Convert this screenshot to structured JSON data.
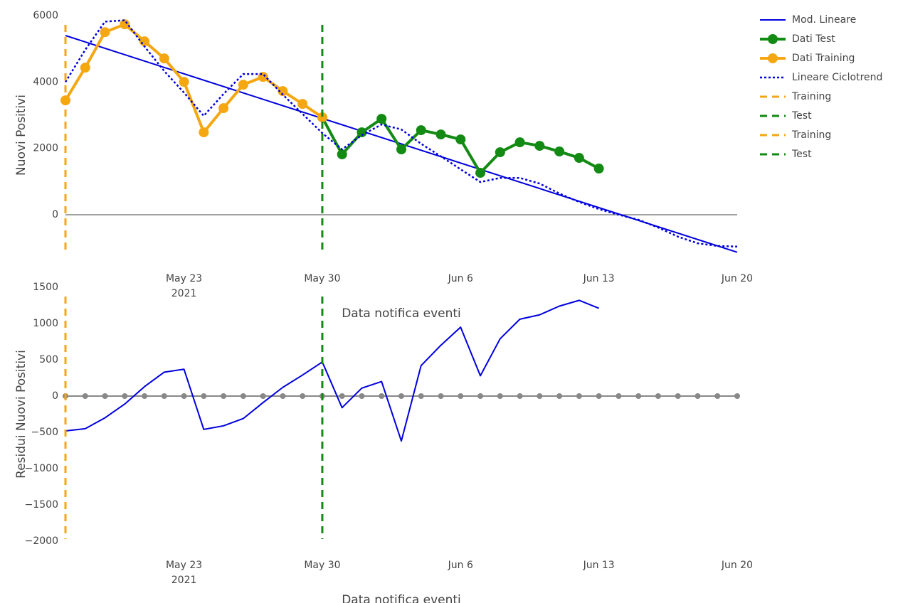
{
  "chart_data": [
    {
      "type": "line",
      "y_title": "Nuovi Positivi",
      "x_title": "Data notifica eventi",
      "xlim": [
        "2021-05-17",
        "2021-06-20"
      ],
      "xticks": [
        {
          "value": "2021-05-23",
          "label": "May 23"
        },
        {
          "value": "2021-05-30",
          "label": "May 30"
        },
        {
          "value": "2021-06-06",
          "label": "Jun 6"
        },
        {
          "value": "2021-06-13",
          "label": "Jun 13"
        },
        {
          "value": "2021-06-20",
          "label": "Jun 20"
        }
      ],
      "x_year_label": "2021",
      "ylim": [
        -1200,
        6000
      ],
      "yticks": [
        0,
        2000,
        4000,
        6000
      ],
      "zeroline": true,
      "series": [
        {
          "name": "Mod. Lineare",
          "color": "#0000dd",
          "dash": "solid",
          "marker": false,
          "width": 2,
          "x": [
            "2021-05-17",
            "2021-06-20"
          ],
          "values": [
            5400,
            -1130
          ]
        },
        {
          "name": "Dati Test",
          "color": "#138a13",
          "dash": "solid",
          "marker": true,
          "width": 4,
          "x": [
            "2021-05-30",
            "2021-05-31",
            "2021-06-01",
            "2021-06-02",
            "2021-06-03",
            "2021-06-04",
            "2021-06-05",
            "2021-06-06",
            "2021-06-07",
            "2021-06-08",
            "2021-06-09",
            "2021-06-10",
            "2021-06-11",
            "2021-06-12",
            "2021-06-13"
          ],
          "values": [
            2934,
            1820,
            2484,
            2891,
            1970,
            2548,
            2420,
            2270,
            1263,
            1884,
            2184,
            2077,
            1906,
            1713,
            1392
          ]
        },
        {
          "name": "Dati Training",
          "color": "#f5a712",
          "dash": "solid",
          "marker": true,
          "width": 4,
          "x": [
            "2021-05-17",
            "2021-05-18",
            "2021-05-19",
            "2021-05-20",
            "2021-05-21",
            "2021-05-22",
            "2021-05-23",
            "2021-05-24",
            "2021-05-25",
            "2021-05-26",
            "2021-05-27",
            "2021-05-28",
            "2021-05-29",
            "2021-05-30"
          ],
          "values": [
            3447,
            4433,
            5503,
            5739,
            5225,
            4711,
            4004,
            2484,
            3212,
            3919,
            4154,
            3726,
            3340,
            2934
          ]
        },
        {
          "name": "Lineare Ciclotrend",
          "color": "#0000dd",
          "dash": "dot",
          "marker": false,
          "width": 2.5,
          "x": [
            "2021-05-17",
            "2021-05-18",
            "2021-05-19",
            "2021-05-20",
            "2021-05-21",
            "2021-05-22",
            "2021-05-23",
            "2021-05-24",
            "2021-05-25",
            "2021-05-26",
            "2021-05-27",
            "2021-05-28",
            "2021-05-29",
            "2021-05-30",
            "2021-05-31",
            "2021-06-01",
            "2021-06-02",
            "2021-06-03",
            "2021-06-04",
            "2021-06-05",
            "2021-06-06",
            "2021-06-07",
            "2021-06-08",
            "2021-06-09",
            "2021-06-10",
            "2021-06-11",
            "2021-06-12",
            "2021-06-13",
            "2021-06-14",
            "2021-06-15",
            "2021-06-16",
            "2021-06-17",
            "2021-06-18",
            "2021-06-19",
            "2021-06-20"
          ],
          "values": [
            4000,
            4970,
            5820,
            5860,
            5070,
            4330,
            3680,
            2980,
            3640,
            4240,
            4240,
            3620,
            3040,
            2460,
            1970,
            2400,
            2720,
            2570,
            2140,
            1760,
            1370,
            985,
            1110,
            1110,
            940,
            640,
            385,
            170,
            0,
            -150,
            -385,
            -660,
            -860,
            -940,
            -960
          ]
        },
        {
          "name": "Training",
          "color": "#f5a712",
          "dash": "dash",
          "kind": "vline",
          "width": 3,
          "x": [
            "2021-05-17"
          ]
        },
        {
          "name": "Test",
          "color": "#138a13",
          "dash": "dash",
          "kind": "vline",
          "width": 3,
          "x": [
            "2021-05-30"
          ]
        }
      ]
    },
    {
      "type": "line",
      "y_title": "Residui Nuovi Positivi",
      "x_title": "Data notifica eventi",
      "xlim": [
        "2021-05-17",
        "2021-06-20"
      ],
      "xticks": [
        {
          "value": "2021-05-23",
          "label": "May 23"
        },
        {
          "value": "2021-05-30",
          "label": "May 30"
        },
        {
          "value": "2021-06-06",
          "label": "Jun 6"
        },
        {
          "value": "2021-06-13",
          "label": "Jun 13"
        },
        {
          "value": "2021-06-20",
          "label": "Jun 20"
        }
      ],
      "x_year_label": "2021",
      "ylim": [
        -2000,
        1500
      ],
      "yticks": [
        {
          "value": -2000,
          "label": "−2000"
        },
        {
          "value": -1500,
          "label": "−1500"
        },
        {
          "value": -1000,
          "label": "−1000"
        },
        {
          "value": -500,
          "label": "−500"
        },
        0,
        500,
        1000,
        1500
      ],
      "zeroline": false,
      "series": [
        {
          "color": "#888888",
          "dash": "solid",
          "marker": true,
          "marker_size": 4,
          "width": 2,
          "x": [
            "2021-05-17",
            "2021-05-18",
            "2021-05-19",
            "2021-05-20",
            "2021-05-21",
            "2021-05-22",
            "2021-05-23",
            "2021-05-24",
            "2021-05-25",
            "2021-05-26",
            "2021-05-27",
            "2021-05-28",
            "2021-05-29",
            "2021-05-30",
            "2021-05-31",
            "2021-06-01",
            "2021-06-02",
            "2021-06-03",
            "2021-06-04",
            "2021-06-05",
            "2021-06-06",
            "2021-06-07",
            "2021-06-08",
            "2021-06-09",
            "2021-06-10",
            "2021-06-11",
            "2021-06-12",
            "2021-06-13",
            "2021-06-14",
            "2021-06-15",
            "2021-06-16",
            "2021-06-17",
            "2021-06-18",
            "2021-06-19",
            "2021-06-20"
          ],
          "values": [
            0,
            0,
            0,
            0,
            0,
            0,
            0,
            0,
            0,
            0,
            0,
            0,
            0,
            0,
            0,
            0,
            0,
            0,
            0,
            0,
            0,
            0,
            0,
            0,
            0,
            0,
            0,
            0,
            0,
            0,
            0,
            0,
            0,
            0,
            0
          ]
        },
        {
          "color": "#0000dd",
          "dash": "solid",
          "marker": false,
          "width": 2,
          "x": [
            "2021-05-17",
            "2021-05-18",
            "2021-05-19",
            "2021-05-20",
            "2021-05-21",
            "2021-05-22",
            "2021-05-23",
            "2021-05-24",
            "2021-05-25",
            "2021-05-26",
            "2021-05-27",
            "2021-05-28",
            "2021-05-29",
            "2021-05-30",
            "2021-05-31",
            "2021-06-01",
            "2021-06-02",
            "2021-06-03",
            "2021-06-04",
            "2021-06-05",
            "2021-06-06",
            "2021-06-07",
            "2021-06-08",
            "2021-06-09",
            "2021-06-10",
            "2021-06-11",
            "2021-06-12",
            "2021-06-13"
          ],
          "values": [
            -480,
            -450,
            -300,
            -110,
            130,
            330,
            370,
            -460,
            -410,
            -310,
            -90,
            120,
            290,
            470,
            -160,
            110,
            200,
            -620,
            420,
            700,
            950,
            280,
            790,
            1060,
            1120,
            1240,
            1320,
            1210
          ]
        },
        {
          "name": "Training",
          "color": "#f5a712",
          "dash": "dash",
          "kind": "vline",
          "width": 3,
          "x": [
            "2021-05-17"
          ]
        },
        {
          "name": "Test",
          "color": "#138a13",
          "dash": "dash",
          "kind": "vline",
          "width": 3,
          "x": [
            "2021-05-30"
          ]
        }
      ]
    }
  ]
}
